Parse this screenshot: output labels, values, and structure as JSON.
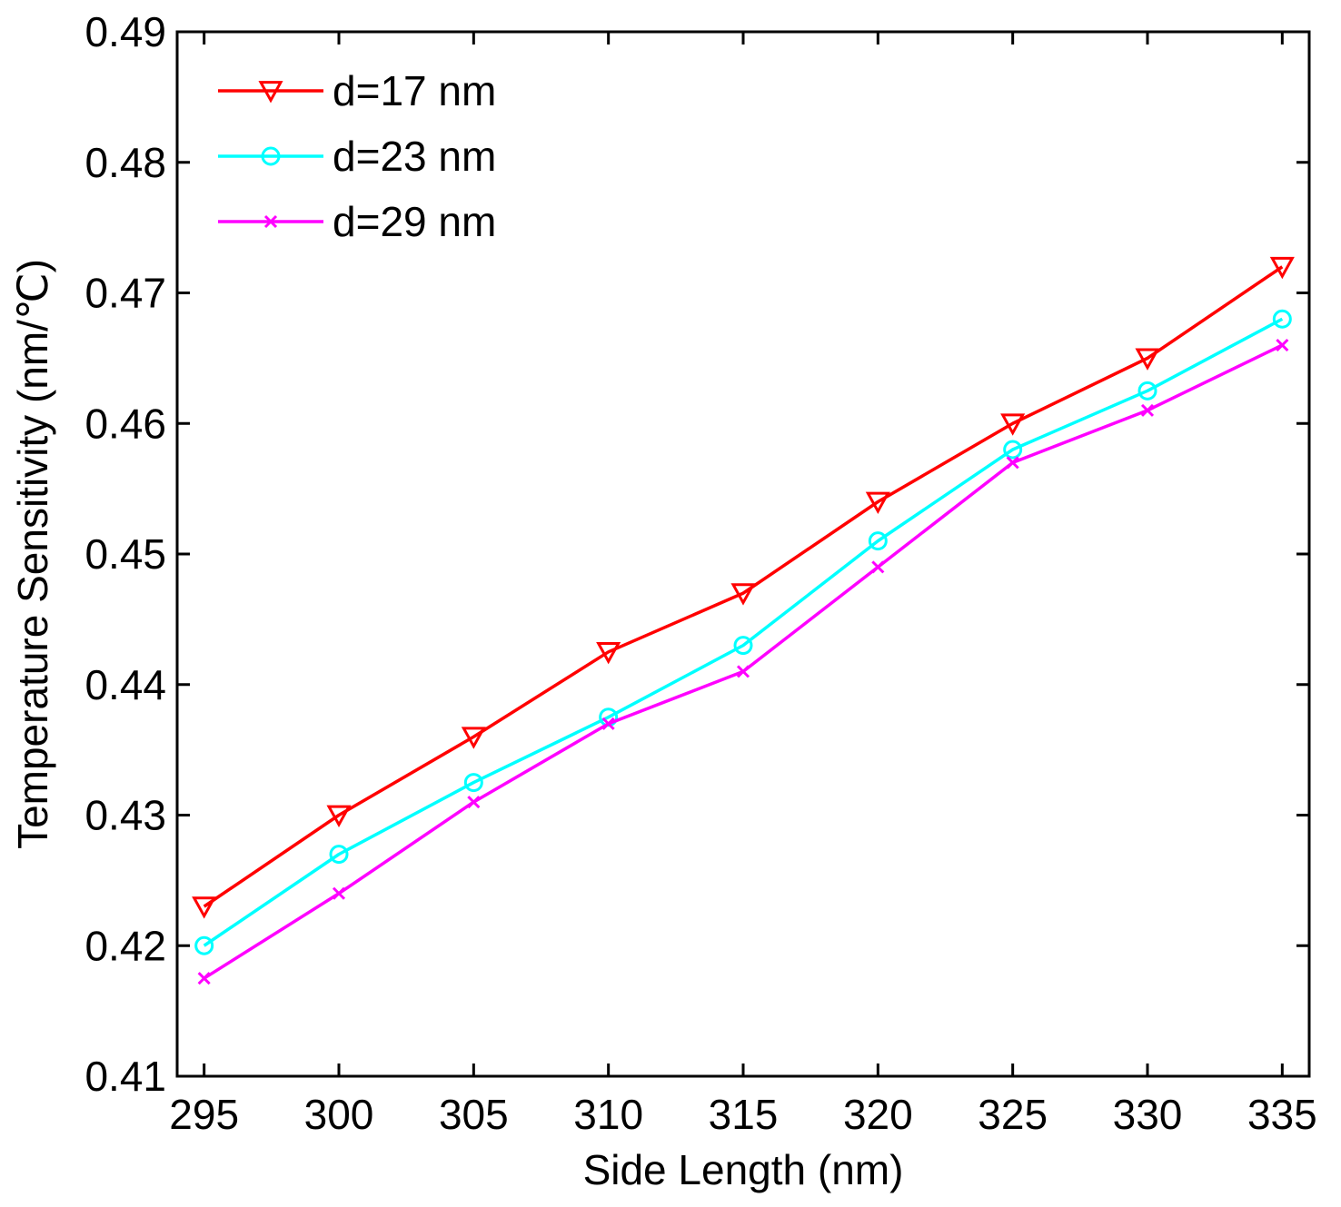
{
  "chart_data": {
    "type": "line",
    "title": "",
    "xlabel": "Side Length (nm)",
    "ylabel": "Temperature Sensitivity (nm/℃)",
    "x": [
      295,
      300,
      305,
      310,
      315,
      320,
      325,
      330,
      335
    ],
    "xlim": [
      294,
      336
    ],
    "ylim": [
      0.41,
      0.49
    ],
    "xticks": [
      "295",
      "300",
      "305",
      "310",
      "315",
      "320",
      "325",
      "330",
      "335"
    ],
    "yticks": [
      "0.41",
      "0.42",
      "0.43",
      "0.44",
      "0.45",
      "0.46",
      "0.47",
      "0.48",
      "0.49"
    ],
    "grid": false,
    "legend_position": "top-left",
    "series": [
      {
        "name": "d=17 nm",
        "color": "#ff0000",
        "marker": "triangle-down",
        "values": [
          0.423,
          0.43,
          0.436,
          0.4425,
          0.447,
          0.454,
          0.46,
          0.465,
          0.472
        ]
      },
      {
        "name": "d=23 nm",
        "color": "#00ffff",
        "marker": "circle",
        "values": [
          0.42,
          0.427,
          0.4325,
          0.4375,
          0.443,
          0.451,
          0.458,
          0.4625,
          0.468
        ]
      },
      {
        "name": "d=29 nm",
        "color": "#ff00ff",
        "marker": "x",
        "values": [
          0.4175,
          0.424,
          0.431,
          0.437,
          0.441,
          0.449,
          0.457,
          0.461,
          0.466
        ]
      }
    ]
  }
}
